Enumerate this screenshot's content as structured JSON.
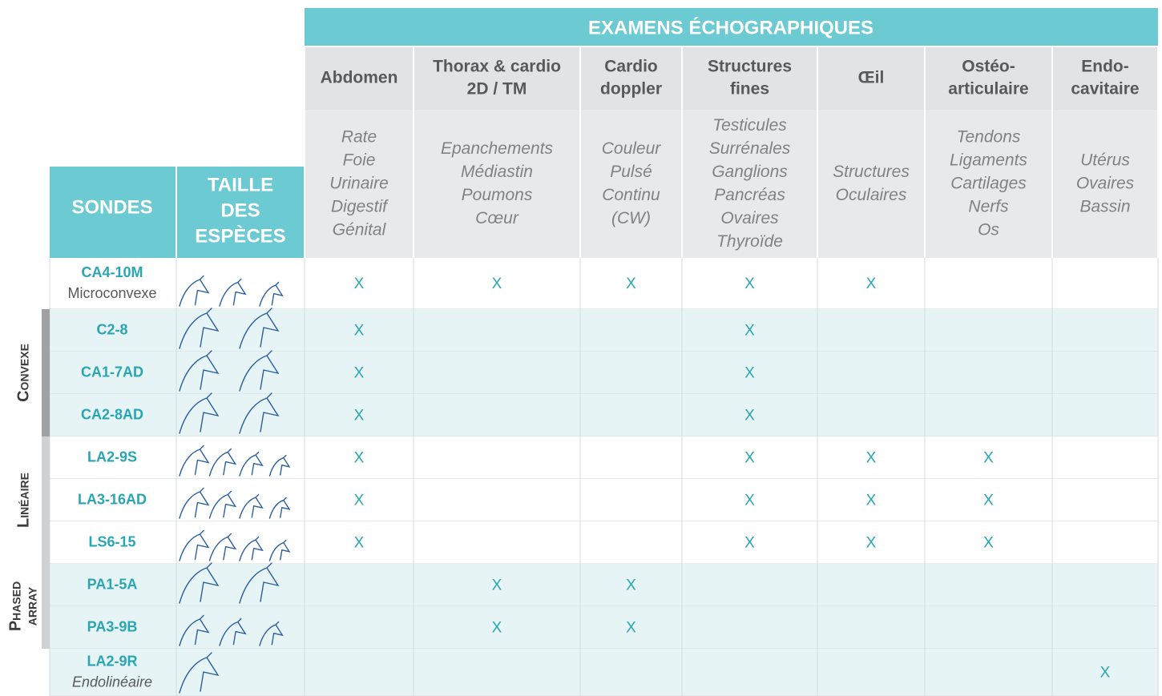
{
  "header": {
    "title": "EXAMENS ÉCHOGRAPHIQUES",
    "probes_label": "SONDES",
    "size_label": [
      "TAILLE",
      "DES",
      "ESPÈCES"
    ]
  },
  "exams": [
    {
      "name": [
        "Abdomen"
      ],
      "description": [
        "Rate",
        "Foie",
        "Urinaire",
        "Digestif",
        "Génital"
      ]
    },
    {
      "name": [
        "Thorax & cardio",
        "2D / TM"
      ],
      "description": [
        "Epanchements",
        "Médiastin",
        "Poumons",
        "Cœur"
      ]
    },
    {
      "name": [
        "Cardio",
        "doppler"
      ],
      "description": [
        "Couleur",
        "Pulsé",
        "Continu",
        "(CW)"
      ]
    },
    {
      "name": [
        "Structures",
        "fines"
      ],
      "description": [
        "Testicules",
        "Surrénales",
        "Ganglions",
        "Pancréas",
        "Ovaires",
        "Thyroïde"
      ]
    },
    {
      "name": [
        "Œil"
      ],
      "description": [
        "Structures",
        "Oculaires"
      ]
    },
    {
      "name": [
        "Ostéo-",
        "articulaire"
      ],
      "description": [
        "Tendons",
        "Ligaments",
        "Cartilages",
        "Nerfs",
        "Os"
      ]
    },
    {
      "name": [
        "Endo-",
        "cavitaire"
      ],
      "description": [
        "Utérus",
        "Ovaires",
        "Bassin"
      ]
    }
  ],
  "groups": [
    {
      "label": [
        "Convexe"
      ]
    },
    {
      "label": [
        "Linéaire"
      ]
    },
    {
      "label": [
        "Phased",
        "array"
      ]
    }
  ],
  "probes": [
    {
      "name": "CA4-10M",
      "subtitle": "Microconvexe",
      "cells": [
        "X",
        "X",
        "X",
        "X",
        "X",
        null,
        null
      ]
    },
    {
      "name": "C2-8",
      "cells": [
        "X",
        null,
        null,
        "X",
        null,
        null,
        null
      ]
    },
    {
      "name": "CA1-7AD",
      "cells": [
        "X",
        null,
        null,
        "X",
        null,
        null,
        null
      ]
    },
    {
      "name": "CA2-8AD",
      "cells": [
        "X",
        null,
        null,
        "X",
        null,
        null,
        null
      ]
    },
    {
      "name": "LA2-9S",
      "cells": [
        "X",
        null,
        null,
        "X",
        "X",
        "X",
        null
      ]
    },
    {
      "name": "LA3-16AD",
      "cells": [
        "X",
        null,
        null,
        "X",
        "X",
        "X",
        null
      ]
    },
    {
      "name": "LS6-15",
      "cells": [
        "X",
        null,
        null,
        "X",
        "X",
        "X",
        null
      ]
    },
    {
      "name": "PA1-5A",
      "cells": [
        null,
        "X",
        "X",
        null,
        null,
        null,
        null
      ]
    },
    {
      "name": "PA3-9B",
      "cells": [
        null,
        "X",
        "X",
        null,
        null,
        null,
        null
      ]
    },
    {
      "name": "LA2-9R",
      "subtitle": "Endolinéaire",
      "cells": [
        null,
        null,
        null,
        null,
        null,
        null,
        "X"
      ]
    }
  ]
}
